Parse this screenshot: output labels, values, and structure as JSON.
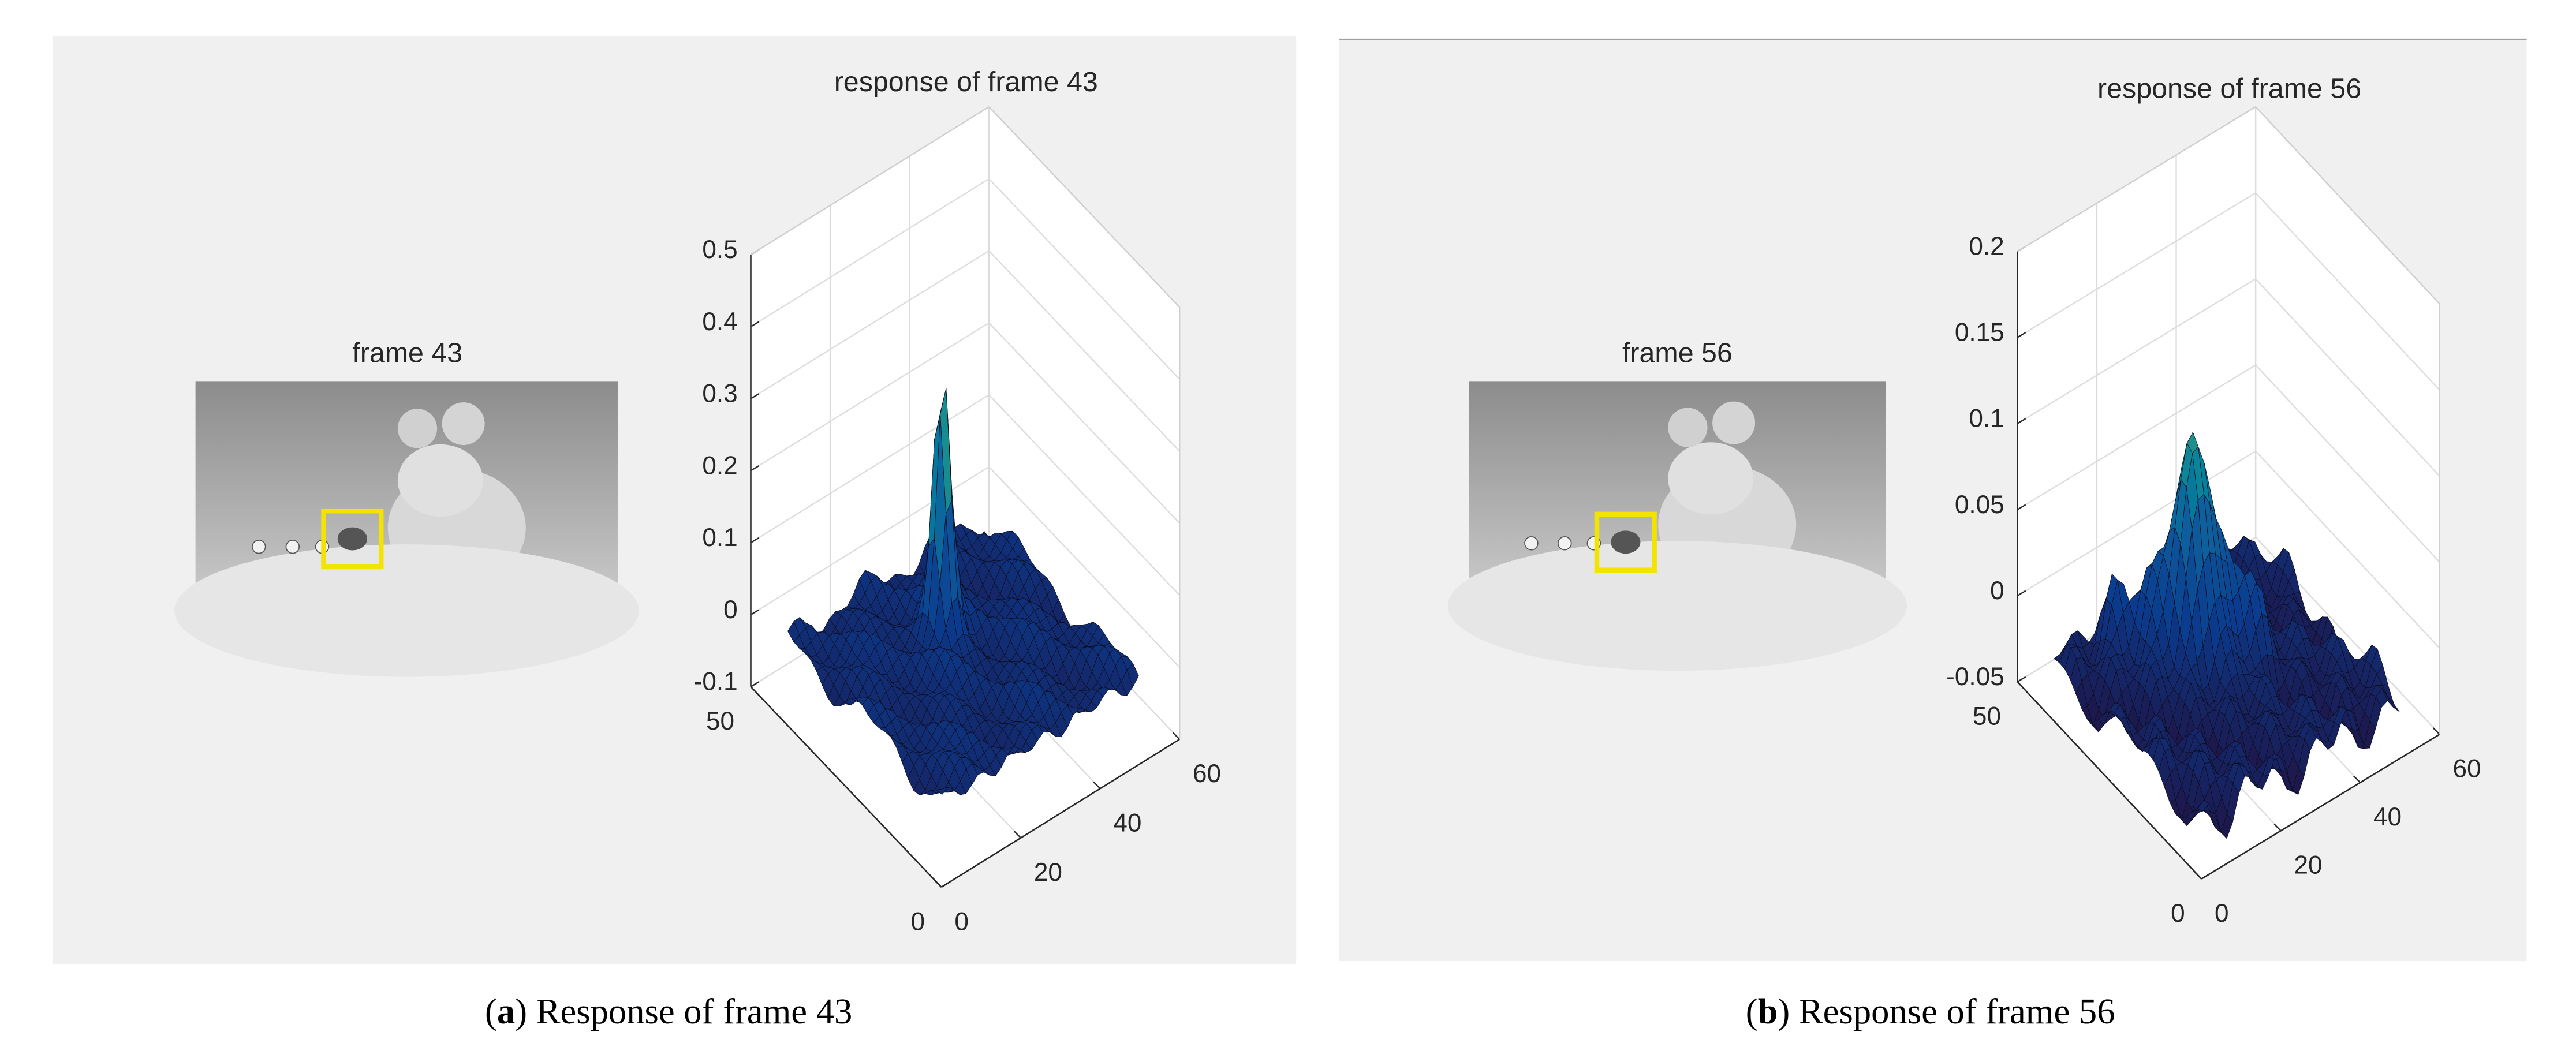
{
  "panels": [
    {
      "image_title": "frame 43",
      "plot_title": "response of frame 43",
      "zlim": [
        -0.1,
        0.5
      ],
      "zticks": [
        -0.1,
        0,
        0.1,
        0.2,
        0.3,
        0.4,
        0.5
      ],
      "ylim": [
        0,
        50
      ],
      "yticks": [
        0,
        50
      ],
      "xlim": [
        0,
        60
      ],
      "xticks": [
        0,
        20,
        40,
        60
      ],
      "caption": [
        "(",
        "a",
        ") Response of frame 43"
      ]
    },
    {
      "image_title": "frame 56",
      "plot_title": "response of frame 56",
      "zlim": [
        -0.05,
        0.2
      ],
      "zticks": [
        -0.05,
        0,
        0.05,
        0.1,
        0.15,
        0.2
      ],
      "ylim": [
        0,
        50
      ],
      "yticks": [
        0,
        50
      ],
      "xlim": [
        0,
        60
      ],
      "xticks": [
        0,
        20,
        40,
        60
      ],
      "caption": [
        "(",
        "b",
        ") Response of frame 56"
      ]
    }
  ]
}
